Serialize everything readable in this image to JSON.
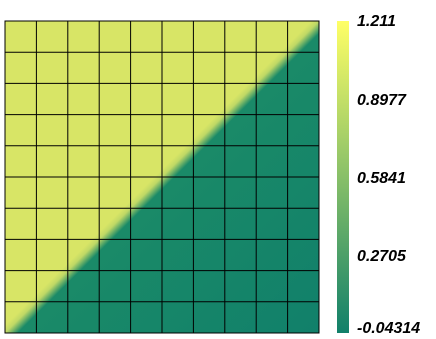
{
  "chart_data": {
    "type": "heatmap",
    "description_free": true,
    "grid": true,
    "grid_cells": [
      10,
      10
    ],
    "colorbar": {
      "min": -0.04314,
      "max": 1.211,
      "tick_labels": [
        "1.211",
        "0.8977",
        "0.5841",
        "0.2705",
        "-0.04314"
      ],
      "tick_values": [
        1.211,
        0.8977,
        0.5841,
        0.2705,
        -0.04314
      ],
      "colors": [
        "#FFFF66",
        "#11806A"
      ]
    },
    "field": {
      "upper_left_value": 1.211,
      "lower_right_value": -0.04314,
      "boundary": "diagonal"
    }
  }
}
